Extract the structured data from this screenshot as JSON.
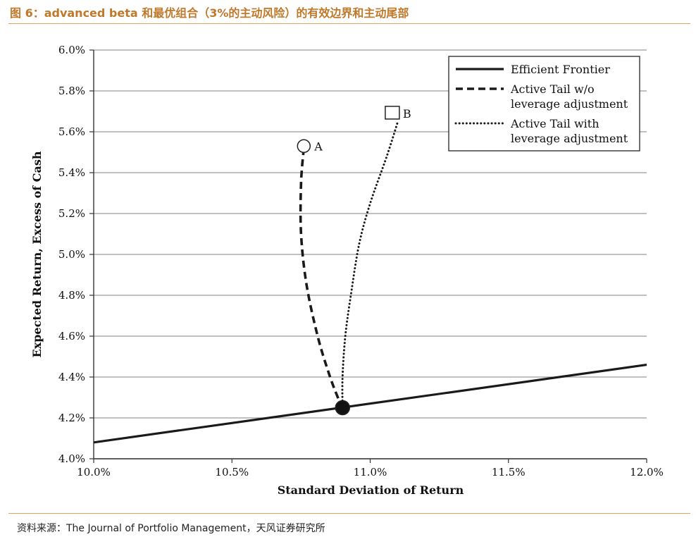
{
  "header": {
    "title": "图 6：advanced beta 和最优组合（3%的主动风险）的有效边界和主动尾部"
  },
  "footer": {
    "source": "资料来源：The Journal of Portfolio Management，天风证券研究所"
  },
  "chart_data": {
    "type": "line",
    "title": "",
    "xlabel": "Standard Deviation of Return",
    "ylabel": "Expected Return, Excess of Cash",
    "xlim": [
      10.0,
      12.0
    ],
    "ylim": [
      4.0,
      6.0
    ],
    "x_ticks": [
      10.0,
      10.5,
      11.0,
      11.5,
      12.0
    ],
    "x_tick_labels": [
      "10.0%",
      "10.5%",
      "11.0%",
      "11.5%",
      "12.0%"
    ],
    "y_ticks": [
      4.0,
      4.2,
      4.4,
      4.6,
      4.8,
      5.0,
      5.2,
      5.4,
      5.6,
      5.8,
      6.0
    ],
    "y_tick_labels": [
      "4.0%",
      "4.2%",
      "4.4%",
      "4.6%",
      "4.8%",
      "5.0%",
      "5.2%",
      "5.4%",
      "5.6%",
      "5.8%",
      "6.0%"
    ],
    "grid": "horizontal",
    "legend_position": "top-right",
    "series": [
      {
        "name": "Efficient Frontier",
        "style": "solid",
        "color": "#1a1a1a",
        "points": [
          [
            10.0,
            4.08
          ],
          [
            12.0,
            4.46
          ]
        ]
      },
      {
        "name": "Active Tail w/o leverage adjustment",
        "style": "dashed",
        "color": "#1a1a1a",
        "points": [
          [
            10.76,
            5.52
          ],
          [
            10.75,
            5.35
          ],
          [
            10.75,
            5.1
          ],
          [
            10.77,
            4.85
          ],
          [
            10.81,
            4.6
          ],
          [
            10.85,
            4.42
          ],
          [
            10.88,
            4.31
          ],
          [
            10.9,
            4.25
          ]
        ]
      },
      {
        "name": "Active Tail  with leverage adjustment",
        "style": "dotted",
        "color": "#1a1a1a",
        "points": [
          [
            10.9,
            4.25
          ],
          [
            10.9,
            4.4
          ],
          [
            10.91,
            4.6
          ],
          [
            10.93,
            4.8
          ],
          [
            10.96,
            5.05
          ],
          [
            11.0,
            5.25
          ],
          [
            11.06,
            5.48
          ],
          [
            11.1,
            5.65
          ]
        ]
      }
    ],
    "markers": [
      {
        "label": "A",
        "shape": "circle",
        "filled": false,
        "x": 10.76,
        "y": 5.53
      },
      {
        "label": "B",
        "shape": "square",
        "filled": false,
        "x": 11.08,
        "y": 5.69
      },
      {
        "label": "",
        "shape": "circle",
        "filled": true,
        "x": 10.9,
        "y": 4.25
      }
    ]
  }
}
